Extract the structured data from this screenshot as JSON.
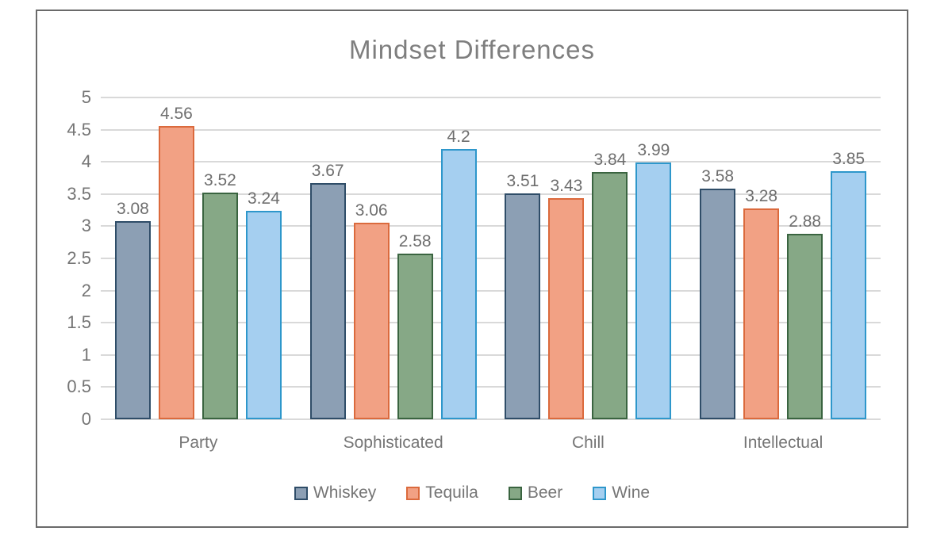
{
  "chart_data": {
    "type": "bar",
    "title": "Mindset Differences",
    "categories": [
      "Party",
      "Sophisticated",
      "Chill",
      "Intellectual"
    ],
    "series": [
      {
        "name": "Whiskey",
        "values": [
          3.08,
          3.67,
          3.51,
          3.58
        ],
        "fill": "#8C9FB4",
        "border": "#2F4D68"
      },
      {
        "name": "Tequila",
        "values": [
          4.56,
          3.06,
          3.43,
          3.28
        ],
        "fill": "#F2A184",
        "border": "#DB6A3D"
      },
      {
        "name": "Beer",
        "values": [
          3.52,
          2.58,
          3.84,
          2.88
        ],
        "fill": "#86A886",
        "border": "#3A6440"
      },
      {
        "name": "Wine",
        "values": [
          3.24,
          4.2,
          3.99,
          3.85
        ],
        "fill": "#A5CFF0",
        "border": "#2E97CB"
      }
    ],
    "data_labels": [
      [
        "3.08",
        "3.67",
        "3.51",
        "3.58"
      ],
      [
        "4.56",
        "3.06",
        "3.43",
        "3.28"
      ],
      [
        "3.52",
        "2.58",
        "3.84",
        "2.88"
      ],
      [
        "3.24",
        "4.2",
        "3.99",
        "3.85"
      ]
    ],
    "ylim": [
      0,
      5
    ],
    "ytick_step": 0.5,
    "y_tick_labels": [
      "0",
      "0.5",
      "1",
      "1.5",
      "2",
      "2.5",
      "3",
      "3.5",
      "4",
      "4.5",
      "5"
    ],
    "grid": true,
    "legend_position": "bottom",
    "colors": {
      "title_text": "#7e7e7e",
      "axis_text": "#757575",
      "data_label_text": "#6e6e6e",
      "gridline": "#d9d9d9",
      "frame_border": "#6a6a6a"
    }
  }
}
